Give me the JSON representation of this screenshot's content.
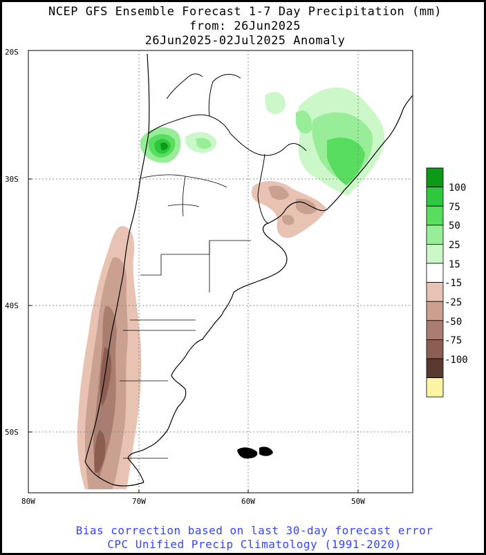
{
  "title": {
    "line1": "NCEP GFS Ensemble Forecast 1-7 Day Precipitation (mm)",
    "line2": "from: 26Jun2025",
    "line3": "26Jun2025-02Jul2025 Anomaly"
  },
  "footer": {
    "line1": "Bias correction based on last 30-day forecast error",
    "line2": "CPC Unified Precip Climatology (1991-2020)"
  },
  "axes": {
    "lat_labels": [
      "20S",
      "30S",
      "40S",
      "50S"
    ],
    "lon_labels": [
      "80W",
      "70W",
      "60W",
      "50W"
    ]
  },
  "legend": {
    "levels": [
      "100",
      "75",
      "50",
      "25",
      "15",
      "-15",
      "-25",
      "-50",
      "-75",
      "-100"
    ],
    "colors": [
      "#0b9a17",
      "#2ec83c",
      "#58dd5e",
      "#98ee98",
      "#ccf7c9",
      "#ffffff",
      "#e8c3b3",
      "#caa090",
      "#a97e70",
      "#8c5e52",
      "#5a3a30",
      "#fbf4a2"
    ]
  }
}
